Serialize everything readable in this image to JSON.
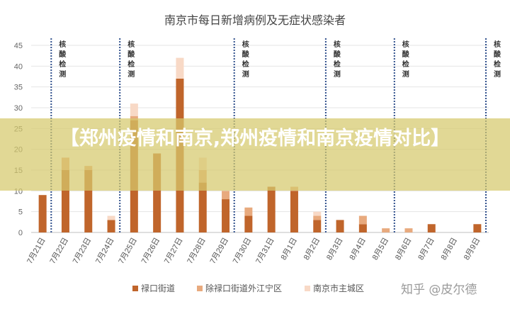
{
  "chart_data": {
    "type": "bar",
    "stacked": true,
    "title": "南京市每日新增病例及无症状感染者",
    "categories": [
      "7月21日",
      "7月22日",
      "7月23日",
      "7月24日",
      "7月25日",
      "7月26日",
      "7月27日",
      "7月28日",
      "7月29日",
      "7月30日",
      "7月31日",
      "8月1日",
      "8月2日",
      "8月3日",
      "8月4日",
      "8月5日",
      "8月6日",
      "8月7日",
      "8月8日",
      "8月9日"
    ],
    "series": [
      {
        "name": "禄口街道",
        "color": "#c0652b",
        "values": [
          9,
          15,
          15,
          3,
          27,
          19,
          37,
          12,
          8,
          4,
          11,
          10,
          3,
          3,
          2,
          0,
          0,
          2,
          0,
          2
        ]
      },
      {
        "name": "除禄口街道外江宁区",
        "color": "#e8aa7e",
        "values": [
          0,
          3,
          1,
          0,
          1,
          0,
          0,
          3,
          2,
          2,
          0,
          1,
          1,
          0,
          2,
          1,
          1,
          0,
          0,
          0
        ]
      },
      {
        "name": "南京市主城区",
        "color": "#f8d9c6",
        "values": [
          0,
          0,
          0,
          1,
          3,
          0,
          5,
          3,
          0,
          0,
          0,
          0,
          1,
          0,
          0,
          0,
          0,
          0,
          0,
          0
        ]
      }
    ],
    "ylim": [
      0,
      45
    ],
    "yticks": [
      0,
      5,
      10,
      15,
      20,
      25,
      30,
      35,
      40,
      45
    ],
    "grid": true,
    "legend": "bottom",
    "annotations": {
      "label": "核酸检测",
      "chars": [
        "核",
        "酸",
        "检",
        "测"
      ],
      "after_indices": [
        0,
        3,
        8,
        12,
        15,
        19
      ]
    }
  },
  "overlay": {
    "banner_text": "【郑州疫情和南京,郑州疫情和南京疫情对比】",
    "watermark": "知乎 @皮尔德"
  }
}
